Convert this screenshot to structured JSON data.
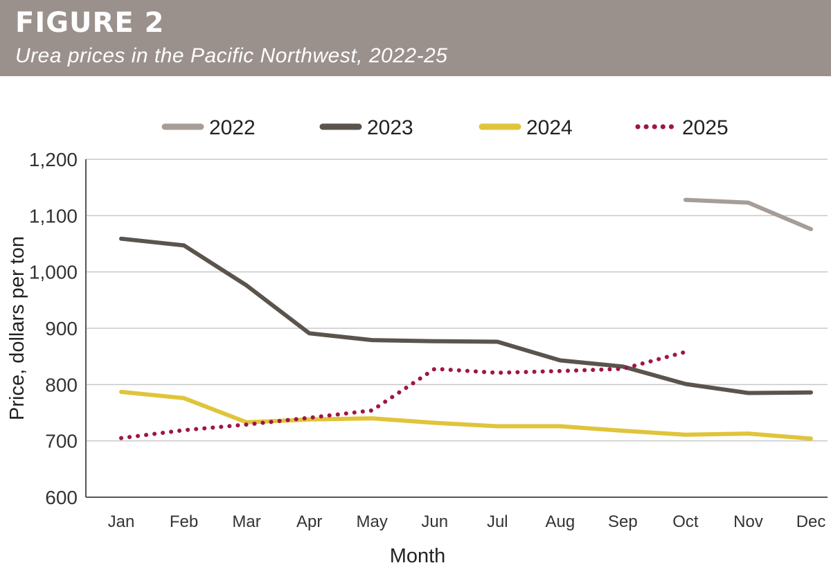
{
  "header": {
    "figure_label": "FIGURE 2",
    "subtitle": "Urea prices in the Pacific Northwest, 2022-25",
    "background": "#9b918c"
  },
  "chart_data": {
    "type": "line",
    "title": "Urea prices in the Pacific Northwest, 2022-25",
    "xlabel": "Month",
    "ylabel": "Price, dollars per ton",
    "ylim": [
      600,
      1200
    ],
    "y_ticks": [
      "600",
      "700",
      "800",
      "900",
      "1,000",
      "1,100",
      "1,200"
    ],
    "categories": [
      "Jan",
      "Feb",
      "Mar",
      "Apr",
      "May",
      "Jun",
      "Jul",
      "Aug",
      "Sep",
      "Oct",
      "Nov",
      "Dec"
    ],
    "grid": "horizontal",
    "legend_position": "top",
    "series": [
      {
        "name": "2022",
        "color": "#a69d98",
        "style": "solid",
        "values": [
          null,
          null,
          null,
          null,
          null,
          null,
          null,
          null,
          null,
          1128,
          1123,
          1076
        ]
      },
      {
        "name": "2023",
        "color": "#5a544d",
        "style": "solid",
        "values": [
          1059,
          1047,
          976,
          891,
          879,
          877,
          876,
          843,
          832,
          801,
          785,
          786
        ]
      },
      {
        "name": "2024",
        "color": "#e0c43a",
        "style": "solid",
        "values": [
          787,
          776,
          733,
          738,
          740,
          732,
          726,
          726,
          718,
          711,
          713,
          704
        ]
      },
      {
        "name": "2025",
        "color": "#a0144a",
        "style": "dotted",
        "values": [
          705,
          719,
          729,
          741,
          754,
          828,
          821,
          824,
          828,
          858,
          null,
          null
        ]
      }
    ]
  }
}
